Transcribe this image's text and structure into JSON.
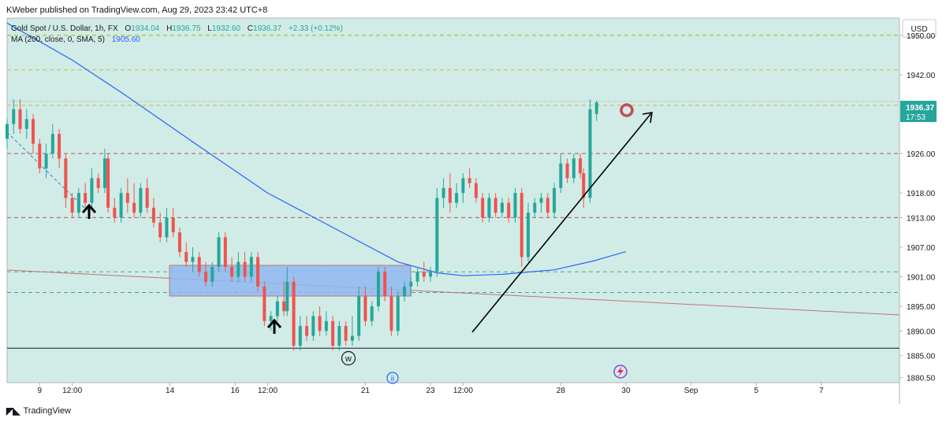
{
  "header": {
    "publisher": "KWeber published on TradingView.com, Aug 29, 2023 23:42 UTC+8"
  },
  "legend": {
    "title": "Gold Spot / U.S. Dollar, 1h, FX",
    "open_label": "O",
    "open": "1934.04",
    "high_label": "H",
    "high": "1936.75",
    "low_label": "L",
    "low": "1932.60",
    "close_label": "C",
    "close": "1936.37",
    "change": "+2.33 (+0.12%)",
    "ma_label": "MA (200, close, 0, SMA, 5)",
    "ma_value": "1905.60"
  },
  "currency": "USD",
  "price_tag": {
    "price": "1936.37",
    "countdown": "17:53"
  },
  "footer": {
    "logo_text": "TradingView"
  },
  "markers": {
    "wave_w": "w",
    "wave_ii": "ii"
  },
  "colors": {
    "bg": "#d1ece6",
    "up": "#26a69a",
    "down": "#ef5350",
    "ma": "#2962ff",
    "zone_fill": "#8fb9ee",
    "zone_stroke": "#c2717a",
    "tag": "#26a69a"
  },
  "chart_data": {
    "type": "candlestick",
    "symbol": "Gold Spot / U.S. Dollar",
    "interval": "1h",
    "y_ticks": [
      1950.0,
      1942.0,
      1936.37,
      1926.0,
      1918.0,
      1913.0,
      1907.0,
      1901.0,
      1895.0,
      1890.0,
      1885.0,
      1880.5
    ],
    "y_tick_labels": [
      "1950.00",
      "1942.00",
      "1936.37",
      "1926.00",
      "1918.00",
      "1913.00",
      "1907.00",
      "1901.00",
      "1895.00",
      "1890.00",
      "1885.00",
      "1880.50"
    ],
    "ylim": [
      1879.5,
      1953.5
    ],
    "x_ticks": [
      {
        "label": "9",
        "t": 0.5
      },
      {
        "label": "12:00",
        "t": 1.0
      },
      {
        "label": "14",
        "t": 2.5
      },
      {
        "label": "16",
        "t": 3.5
      },
      {
        "label": "12:00",
        "t": 4.0
      },
      {
        "label": "21",
        "t": 5.5
      },
      {
        "label": "23",
        "t": 6.5
      },
      {
        "label": "12:00",
        "t": 7.0
      },
      {
        "label": "28",
        "t": 8.5
      },
      {
        "label": "30",
        "t": 9.5
      },
      {
        "label": "Sep",
        "t": 10.5
      },
      {
        "label": "5",
        "t": 11.5
      },
      {
        "label": "7",
        "t": 12.5
      }
    ],
    "xlim": [
      0,
      13.7
    ],
    "horizontal_levels": [
      {
        "price": 1950.0,
        "style": "dashed",
        "color": "#a8b400"
      },
      {
        "price": 1943.0,
        "style": "dashed",
        "color": "#c9b44a"
      },
      {
        "price": 1936.6,
        "style": "dotted",
        "color": "#8fa5a0"
      },
      {
        "price": 1935.8,
        "style": "dashed",
        "color": "#c9b44a"
      },
      {
        "price": 1926.0,
        "style": "dashed",
        "color": "#b85555"
      },
      {
        "price": 1913.0,
        "style": "dashed",
        "color": "#b85555"
      },
      {
        "price": 1902.0,
        "style": "dashed",
        "color": "#3cb371"
      },
      {
        "price": 1897.8,
        "style": "dashed",
        "color": "#3aa0a8"
      },
      {
        "price": 1886.5,
        "style": "solid",
        "color": "#131722"
      }
    ],
    "ma_series": [
      {
        "t": 0,
        "p": 1952.5
      },
      {
        "t": 1,
        "p": 1945
      },
      {
        "t": 1.8,
        "p": 1938
      },
      {
        "t": 3,
        "p": 1927
      },
      {
        "t": 4,
        "p": 1918
      },
      {
        "t": 5,
        "p": 1911
      },
      {
        "t": 6,
        "p": 1904
      },
      {
        "t": 6.6,
        "p": 1901.8
      },
      {
        "t": 7,
        "p": 1901.2
      },
      {
        "t": 7.6,
        "p": 1901.5
      },
      {
        "t": 8.4,
        "p": 1902.4
      },
      {
        "t": 9,
        "p": 1904.2
      },
      {
        "t": 9.5,
        "p": 1906.1
      }
    ],
    "candles": [
      {
        "t": 0.0,
        "o": 1929,
        "h": 1933,
        "l": 1927,
        "c": 1932
      },
      {
        "t": 0.1,
        "o": 1932,
        "h": 1937,
        "l": 1930,
        "c": 1935
      },
      {
        "t": 0.2,
        "o": 1935,
        "h": 1937,
        "l": 1930,
        "c": 1931
      },
      {
        "t": 0.3,
        "o": 1931,
        "h": 1935,
        "l": 1929,
        "c": 1933
      },
      {
        "t": 0.4,
        "o": 1933,
        "h": 1934,
        "l": 1926,
        "c": 1928
      },
      {
        "t": 0.5,
        "o": 1928,
        "h": 1929,
        "l": 1922,
        "c": 1923
      },
      {
        "t": 0.6,
        "o": 1923,
        "h": 1928,
        "l": 1921,
        "c": 1926
      },
      {
        "t": 0.7,
        "o": 1926,
        "h": 1932,
        "l": 1925,
        "c": 1930
      },
      {
        "t": 0.8,
        "o": 1930,
        "h": 1931,
        "l": 1923,
        "c": 1925
      },
      {
        "t": 0.9,
        "o": 1925,
        "h": 1926,
        "l": 1915,
        "c": 1917
      },
      {
        "t": 1.0,
        "o": 1917,
        "h": 1918,
        "l": 1913,
        "c": 1914
      },
      {
        "t": 1.1,
        "o": 1914,
        "h": 1919,
        "l": 1913,
        "c": 1918
      },
      {
        "t": 1.2,
        "o": 1918,
        "h": 1920,
        "l": 1915,
        "c": 1916
      },
      {
        "t": 1.3,
        "o": 1916,
        "h": 1923,
        "l": 1915,
        "c": 1921
      },
      {
        "t": 1.4,
        "o": 1921,
        "h": 1922,
        "l": 1918,
        "c": 1919
      },
      {
        "t": 1.5,
        "o": 1919,
        "h": 1927,
        "l": 1918,
        "c": 1925
      },
      {
        "t": 1.55,
        "o": 1925,
        "h": 1926,
        "l": 1914,
        "c": 1915
      },
      {
        "t": 1.65,
        "o": 1915,
        "h": 1917,
        "l": 1912,
        "c": 1913
      },
      {
        "t": 1.75,
        "o": 1913,
        "h": 1919,
        "l": 1912,
        "c": 1918
      },
      {
        "t": 1.85,
        "o": 1918,
        "h": 1921,
        "l": 1914,
        "c": 1916
      },
      {
        "t": 1.95,
        "o": 1916,
        "h": 1920,
        "l": 1913,
        "c": 1914
      },
      {
        "t": 2.05,
        "o": 1914,
        "h": 1920,
        "l": 1913,
        "c": 1919
      },
      {
        "t": 2.15,
        "o": 1919,
        "h": 1921,
        "l": 1914,
        "c": 1915
      },
      {
        "t": 2.25,
        "o": 1915,
        "h": 1917,
        "l": 1911,
        "c": 1912
      },
      {
        "t": 2.35,
        "o": 1912,
        "h": 1914,
        "l": 1908,
        "c": 1909
      },
      {
        "t": 2.45,
        "o": 1909,
        "h": 1915,
        "l": 1908,
        "c": 1913
      },
      {
        "t": 2.55,
        "o": 1913,
        "h": 1915,
        "l": 1909,
        "c": 1910
      },
      {
        "t": 2.65,
        "o": 1910,
        "h": 1911,
        "l": 1905,
        "c": 1906
      },
      {
        "t": 2.75,
        "o": 1906,
        "h": 1908,
        "l": 1903,
        "c": 1904
      },
      {
        "t": 2.85,
        "o": 1904,
        "h": 1907,
        "l": 1902,
        "c": 1905
      },
      {
        "t": 2.95,
        "o": 1905,
        "h": 1906,
        "l": 1901,
        "c": 1902
      },
      {
        "t": 3.05,
        "o": 1902,
        "h": 1904,
        "l": 1899,
        "c": 1900
      },
      {
        "t": 3.15,
        "o": 1900,
        "h": 1904,
        "l": 1899,
        "c": 1903
      },
      {
        "t": 3.25,
        "o": 1903,
        "h": 1910,
        "l": 1902,
        "c": 1909
      },
      {
        "t": 3.35,
        "o": 1909,
        "h": 1910,
        "l": 1902,
        "c": 1903
      },
      {
        "t": 3.45,
        "o": 1903,
        "h": 1905,
        "l": 1900,
        "c": 1901
      },
      {
        "t": 3.55,
        "o": 1901,
        "h": 1906,
        "l": 1900,
        "c": 1904
      },
      {
        "t": 3.65,
        "o": 1904,
        "h": 1906,
        "l": 1900,
        "c": 1901
      },
      {
        "t": 3.75,
        "o": 1901,
        "h": 1906,
        "l": 1900,
        "c": 1905
      },
      {
        "t": 3.85,
        "o": 1905,
        "h": 1906,
        "l": 1898,
        "c": 1899
      },
      {
        "t": 3.95,
        "o": 1899,
        "h": 1900,
        "l": 1891,
        "c": 1892
      },
      {
        "t": 4.05,
        "o": 1892,
        "h": 1894,
        "l": 1890,
        "c": 1893
      },
      {
        "t": 4.15,
        "o": 1893,
        "h": 1897,
        "l": 1892,
        "c": 1896
      },
      {
        "t": 4.25,
        "o": 1896,
        "h": 1900,
        "l": 1893,
        "c": 1894
      },
      {
        "t": 4.3,
        "o": 1894,
        "h": 1903,
        "l": 1893,
        "c": 1900
      },
      {
        "t": 4.4,
        "o": 1900,
        "h": 1901,
        "l": 1886,
        "c": 1887
      },
      {
        "t": 4.5,
        "o": 1887,
        "h": 1893,
        "l": 1886,
        "c": 1891
      },
      {
        "t": 4.6,
        "o": 1891,
        "h": 1893,
        "l": 1888,
        "c": 1889
      },
      {
        "t": 4.7,
        "o": 1889,
        "h": 1894,
        "l": 1888,
        "c": 1893
      },
      {
        "t": 4.8,
        "o": 1893,
        "h": 1895,
        "l": 1889,
        "c": 1890
      },
      {
        "t": 4.9,
        "o": 1890,
        "h": 1894,
        "l": 1889,
        "c": 1892
      },
      {
        "t": 5.0,
        "o": 1892,
        "h": 1893,
        "l": 1886,
        "c": 1887
      },
      {
        "t": 5.1,
        "o": 1887,
        "h": 1892,
        "l": 1886,
        "c": 1891
      },
      {
        "t": 5.2,
        "o": 1891,
        "h": 1892,
        "l": 1887,
        "c": 1888
      },
      {
        "t": 5.3,
        "o": 1888,
        "h": 1893,
        "l": 1887,
        "c": 1889
      },
      {
        "t": 5.4,
        "o": 1889,
        "h": 1899,
        "l": 1888,
        "c": 1897
      },
      {
        "t": 5.5,
        "o": 1897,
        "h": 1899,
        "l": 1891,
        "c": 1892
      },
      {
        "t": 5.6,
        "o": 1892,
        "h": 1896,
        "l": 1891,
        "c": 1895
      },
      {
        "t": 5.7,
        "o": 1895,
        "h": 1903,
        "l": 1894,
        "c": 1902
      },
      {
        "t": 5.8,
        "o": 1902,
        "h": 1903,
        "l": 1896,
        "c": 1897
      },
      {
        "t": 5.9,
        "o": 1897,
        "h": 1899,
        "l": 1889,
        "c": 1890
      },
      {
        "t": 6.0,
        "o": 1890,
        "h": 1898,
        "l": 1889,
        "c": 1897
      },
      {
        "t": 6.1,
        "o": 1897,
        "h": 1900,
        "l": 1896,
        "c": 1899
      },
      {
        "t": 6.2,
        "o": 1899,
        "h": 1901,
        "l": 1897,
        "c": 1900
      },
      {
        "t": 6.3,
        "o": 1900,
        "h": 1903,
        "l": 1899,
        "c": 1902
      },
      {
        "t": 6.4,
        "o": 1902,
        "h": 1904,
        "l": 1900,
        "c": 1901
      },
      {
        "t": 6.5,
        "o": 1901,
        "h": 1903,
        "l": 1900,
        "c": 1902
      },
      {
        "t": 6.6,
        "o": 1902,
        "h": 1919,
        "l": 1901,
        "c": 1917
      },
      {
        "t": 6.7,
        "o": 1917,
        "h": 1921,
        "l": 1915,
        "c": 1919
      },
      {
        "t": 6.8,
        "o": 1919,
        "h": 1922,
        "l": 1914,
        "c": 1916
      },
      {
        "t": 6.9,
        "o": 1916,
        "h": 1920,
        "l": 1915,
        "c": 1918
      },
      {
        "t": 7.0,
        "o": 1918,
        "h": 1922,
        "l": 1916,
        "c": 1921
      },
      {
        "t": 7.1,
        "o": 1921,
        "h": 1923,
        "l": 1919,
        "c": 1920
      },
      {
        "t": 7.2,
        "o": 1920,
        "h": 1921,
        "l": 1916,
        "c": 1917
      },
      {
        "t": 7.3,
        "o": 1917,
        "h": 1918,
        "l": 1912,
        "c": 1913
      },
      {
        "t": 7.4,
        "o": 1913,
        "h": 1918,
        "l": 1912,
        "c": 1917
      },
      {
        "t": 7.5,
        "o": 1917,
        "h": 1918,
        "l": 1913,
        "c": 1914
      },
      {
        "t": 7.6,
        "o": 1914,
        "h": 1917,
        "l": 1913,
        "c": 1916
      },
      {
        "t": 7.7,
        "o": 1916,
        "h": 1917,
        "l": 1912,
        "c": 1913
      },
      {
        "t": 7.8,
        "o": 1913,
        "h": 1919,
        "l": 1912,
        "c": 1918
      },
      {
        "t": 7.9,
        "o": 1918,
        "h": 1919,
        "l": 1903,
        "c": 1905
      },
      {
        "t": 8.0,
        "o": 1905,
        "h": 1916,
        "l": 1904,
        "c": 1914
      },
      {
        "t": 8.1,
        "o": 1914,
        "h": 1917,
        "l": 1913,
        "c": 1916
      },
      {
        "t": 8.2,
        "o": 1916,
        "h": 1918,
        "l": 1914,
        "c": 1917
      },
      {
        "t": 8.3,
        "o": 1917,
        "h": 1918,
        "l": 1913,
        "c": 1914
      },
      {
        "t": 8.4,
        "o": 1914,
        "h": 1920,
        "l": 1913,
        "c": 1919
      },
      {
        "t": 8.5,
        "o": 1919,
        "h": 1926,
        "l": 1918,
        "c": 1924
      },
      {
        "t": 8.6,
        "o": 1924,
        "h": 1925,
        "l": 1920,
        "c": 1921
      },
      {
        "t": 8.7,
        "o": 1921,
        "h": 1926,
        "l": 1920,
        "c": 1925
      },
      {
        "t": 8.8,
        "o": 1925,
        "h": 1926,
        "l": 1921,
        "c": 1922
      },
      {
        "t": 8.85,
        "o": 1922,
        "h": 1923,
        "l": 1915,
        "c": 1917
      },
      {
        "t": 8.95,
        "o": 1917,
        "h": 1937,
        "l": 1916,
        "c": 1935
      },
      {
        "t": 9.05,
        "o": 1934.04,
        "h": 1936.75,
        "l": 1932.6,
        "c": 1936.37
      }
    ]
  }
}
